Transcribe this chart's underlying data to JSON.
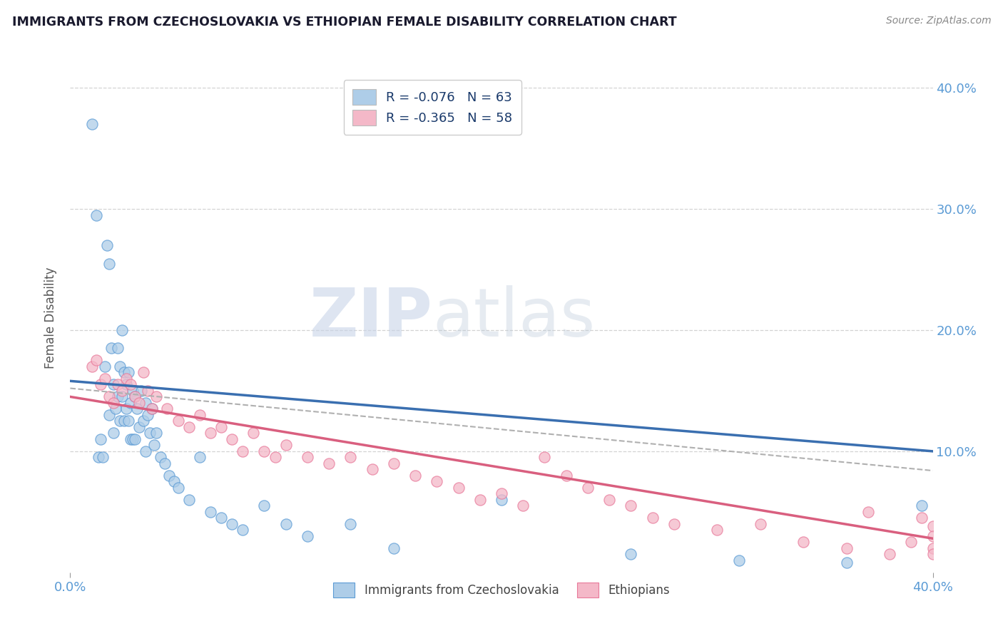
{
  "title": "IMMIGRANTS FROM CZECHOSLOVAKIA VS ETHIOPIAN FEMALE DISABILITY CORRELATION CHART",
  "source": "Source: ZipAtlas.com",
  "ylabel": "Female Disability",
  "watermark_zip": "ZIP",
  "watermark_atlas": "atlas",
  "legend": [
    {
      "label": "R = -0.076   N = 63",
      "color": "#aecde8"
    },
    {
      "label": "R = -0.365   N = 58",
      "color": "#f4b8c8"
    }
  ],
  "legend_bottom": [
    {
      "label": "Immigrants from Czechoslovakia",
      "color": "#aecde8"
    },
    {
      "label": "Ethiopians",
      "color": "#f4b8c8"
    }
  ],
  "xmin": 0.0,
  "xmax": 0.4,
  "ymin": 0.0,
  "ymax": 0.42,
  "blue_scatter_x": [
    0.01,
    0.012,
    0.013,
    0.014,
    0.015,
    0.016,
    0.017,
    0.018,
    0.018,
    0.019,
    0.02,
    0.02,
    0.021,
    0.022,
    0.022,
    0.023,
    0.023,
    0.024,
    0.024,
    0.025,
    0.025,
    0.026,
    0.026,
    0.027,
    0.027,
    0.028,
    0.028,
    0.029,
    0.029,
    0.03,
    0.03,
    0.031,
    0.032,
    0.033,
    0.034,
    0.035,
    0.035,
    0.036,
    0.037,
    0.038,
    0.039,
    0.04,
    0.042,
    0.044,
    0.046,
    0.048,
    0.05,
    0.055,
    0.06,
    0.065,
    0.07,
    0.075,
    0.08,
    0.09,
    0.1,
    0.11,
    0.13,
    0.15,
    0.2,
    0.26,
    0.31,
    0.36,
    0.395
  ],
  "blue_scatter_y": [
    0.37,
    0.295,
    0.095,
    0.11,
    0.095,
    0.17,
    0.27,
    0.255,
    0.13,
    0.185,
    0.115,
    0.155,
    0.135,
    0.185,
    0.145,
    0.17,
    0.125,
    0.2,
    0.145,
    0.165,
    0.125,
    0.155,
    0.135,
    0.165,
    0.125,
    0.14,
    0.11,
    0.15,
    0.11,
    0.145,
    0.11,
    0.135,
    0.12,
    0.15,
    0.125,
    0.14,
    0.1,
    0.13,
    0.115,
    0.135,
    0.105,
    0.115,
    0.095,
    0.09,
    0.08,
    0.075,
    0.07,
    0.06,
    0.095,
    0.05,
    0.045,
    0.04,
    0.035,
    0.055,
    0.04,
    0.03,
    0.04,
    0.02,
    0.06,
    0.015,
    0.01,
    0.008,
    0.055
  ],
  "pink_scatter_x": [
    0.01,
    0.012,
    0.014,
    0.016,
    0.018,
    0.02,
    0.022,
    0.024,
    0.026,
    0.028,
    0.03,
    0.032,
    0.034,
    0.036,
    0.038,
    0.04,
    0.045,
    0.05,
    0.055,
    0.06,
    0.065,
    0.07,
    0.075,
    0.08,
    0.085,
    0.09,
    0.095,
    0.1,
    0.11,
    0.12,
    0.13,
    0.14,
    0.15,
    0.16,
    0.17,
    0.18,
    0.19,
    0.2,
    0.21,
    0.22,
    0.23,
    0.24,
    0.25,
    0.26,
    0.27,
    0.28,
    0.3,
    0.32,
    0.34,
    0.36,
    0.37,
    0.38,
    0.39,
    0.395,
    0.4,
    0.4,
    0.4,
    0.4
  ],
  "pink_scatter_y": [
    0.17,
    0.175,
    0.155,
    0.16,
    0.145,
    0.14,
    0.155,
    0.15,
    0.16,
    0.155,
    0.145,
    0.14,
    0.165,
    0.15,
    0.135,
    0.145,
    0.135,
    0.125,
    0.12,
    0.13,
    0.115,
    0.12,
    0.11,
    0.1,
    0.115,
    0.1,
    0.095,
    0.105,
    0.095,
    0.09,
    0.095,
    0.085,
    0.09,
    0.08,
    0.075,
    0.07,
    0.06,
    0.065,
    0.055,
    0.095,
    0.08,
    0.07,
    0.06,
    0.055,
    0.045,
    0.04,
    0.035,
    0.04,
    0.025,
    0.02,
    0.05,
    0.015,
    0.025,
    0.045,
    0.038,
    0.03,
    0.02,
    0.015
  ],
  "blue_line_x": [
    0.0,
    0.4
  ],
  "blue_line_y": [
    0.158,
    0.1
  ],
  "pink_line_x": [
    0.0,
    0.4
  ],
  "pink_line_y": [
    0.145,
    0.028
  ],
  "gray_line_x": [
    0.0,
    0.4
  ],
  "gray_line_y": [
    0.152,
    0.084
  ],
  "blue_dot_color": "#aecde8",
  "blue_edge_color": "#5b9bd5",
  "pink_dot_color": "#f4b8c8",
  "pink_edge_color": "#e8799a",
  "blue_line_color": "#3a6fb0",
  "pink_line_color": "#d95f7f",
  "gray_line_color": "#b0b0b0",
  "background_color": "#ffffff",
  "grid_color": "#c8c8c8",
  "title_color": "#1a1a2e",
  "right_axis_color": "#5b9bd5",
  "left_axis_color": "#888888"
}
